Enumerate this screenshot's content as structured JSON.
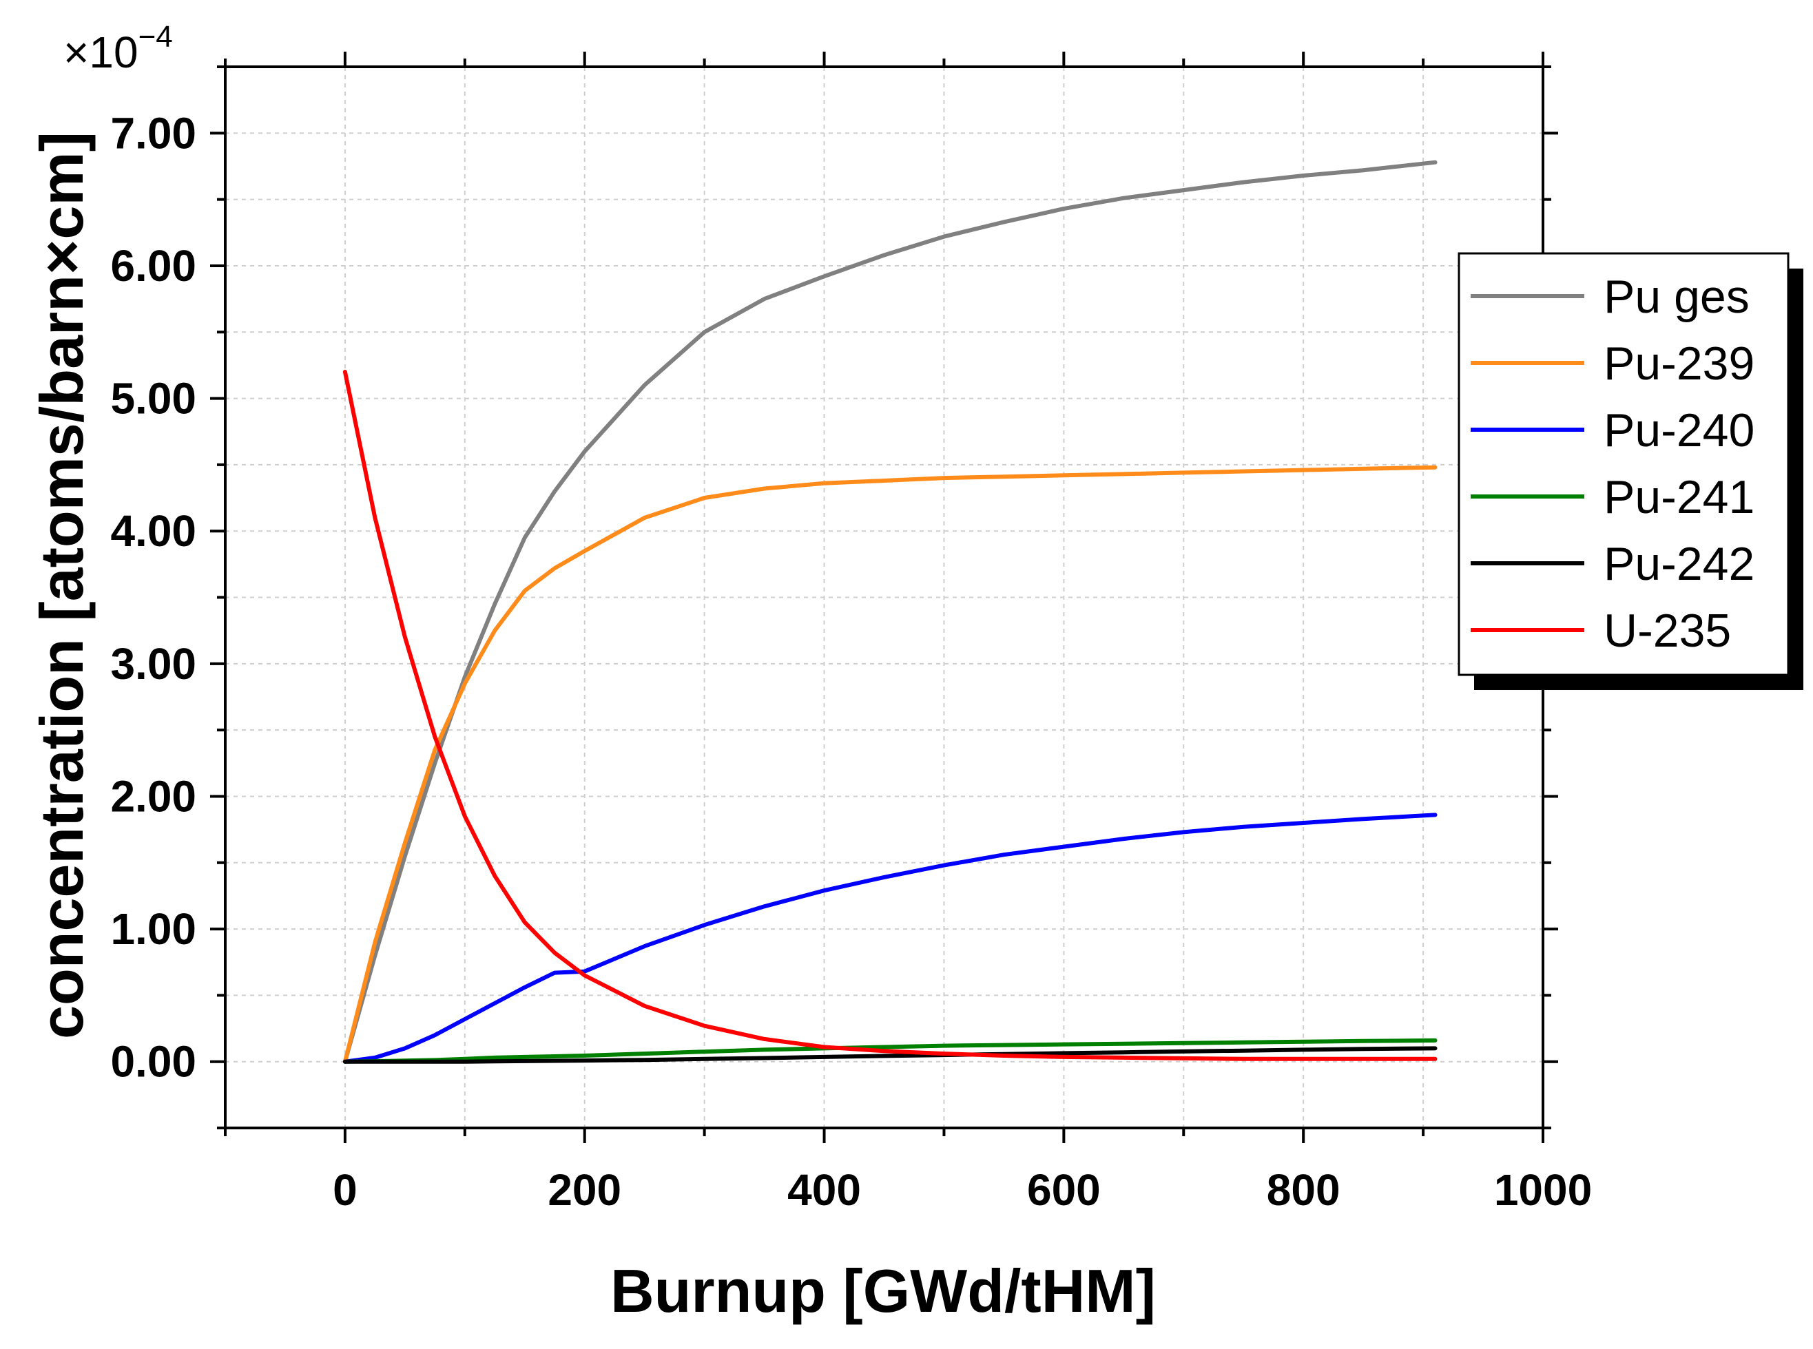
{
  "chart_data": {
    "type": "line",
    "title": "",
    "xlabel": "Burnup [GWd/tHM]",
    "ylabel": "concentration [atoms/barn×cm]",
    "y_multiplier": {
      "base": "×10",
      "exponent": "−4"
    },
    "xlim": [
      -100,
      1000
    ],
    "ylim": [
      -0.5,
      7.5
    ],
    "grid": true,
    "legend_position": "right",
    "x_ticks": [
      0,
      200,
      400,
      600,
      800,
      1000
    ],
    "x_tick_labels": [
      "0",
      "200",
      "400",
      "600",
      "800",
      "1000"
    ],
    "y_ticks": [
      0,
      1,
      2,
      3,
      4,
      5,
      6,
      7
    ],
    "y_tick_labels": [
      "0.00",
      "1.00",
      "2.00",
      "3.00",
      "4.00",
      "5.00",
      "6.00",
      "7.00"
    ],
    "x": [
      0,
      25,
      50,
      75,
      100,
      125,
      150,
      175,
      200,
      250,
      300,
      350,
      400,
      450,
      500,
      550,
      600,
      650,
      700,
      750,
      800,
      850,
      910
    ],
    "series": [
      {
        "name": "Pu ges",
        "color": "#808080",
        "values": [
          0.0,
          0.8,
          1.55,
          2.25,
          2.9,
          3.45,
          3.95,
          4.3,
          4.6,
          5.1,
          5.5,
          5.75,
          5.92,
          6.08,
          6.22,
          6.33,
          6.43,
          6.51,
          6.57,
          6.63,
          6.68,
          6.72,
          6.78
        ]
      },
      {
        "name": "Pu-239",
        "color": "#ff8c1a",
        "values": [
          0.0,
          0.9,
          1.65,
          2.35,
          2.85,
          3.25,
          3.55,
          3.72,
          3.85,
          4.1,
          4.25,
          4.32,
          4.36,
          4.38,
          4.4,
          4.41,
          4.42,
          4.43,
          4.44,
          4.45,
          4.46,
          4.47,
          4.48
        ]
      },
      {
        "name": "Pu-240",
        "color": "#0000ff",
        "values": [
          0.0,
          0.03,
          0.1,
          0.2,
          0.32,
          0.44,
          0.56,
          0.67,
          0.68,
          0.87,
          1.03,
          1.17,
          1.29,
          1.39,
          1.48,
          1.56,
          1.62,
          1.68,
          1.73,
          1.77,
          1.8,
          1.83,
          1.86
        ]
      },
      {
        "name": "Pu-241",
        "color": "#008000",
        "values": [
          0.0,
          0.003,
          0.007,
          0.012,
          0.02,
          0.03,
          0.035,
          0.04,
          0.045,
          0.06,
          0.075,
          0.09,
          0.1,
          0.11,
          0.12,
          0.125,
          0.13,
          0.135,
          0.14,
          0.145,
          0.15,
          0.155,
          0.16
        ]
      },
      {
        "name": "Pu-242",
        "color": "#000000",
        "values": [
          0.0,
          0.0,
          0.0,
          0.0,
          0.0,
          0.002,
          0.004,
          0.006,
          0.008,
          0.013,
          0.02,
          0.027,
          0.035,
          0.043,
          0.05,
          0.057,
          0.064,
          0.07,
          0.077,
          0.083,
          0.09,
          0.096,
          0.1
        ]
      },
      {
        "name": "U-235",
        "color": "#ff0000",
        "values": [
          5.2,
          4.1,
          3.2,
          2.45,
          1.85,
          1.4,
          1.05,
          0.82,
          0.65,
          0.42,
          0.27,
          0.17,
          0.11,
          0.08,
          0.06,
          0.045,
          0.035,
          0.03,
          0.025,
          0.02,
          0.02,
          0.02,
          0.02
        ]
      }
    ]
  }
}
